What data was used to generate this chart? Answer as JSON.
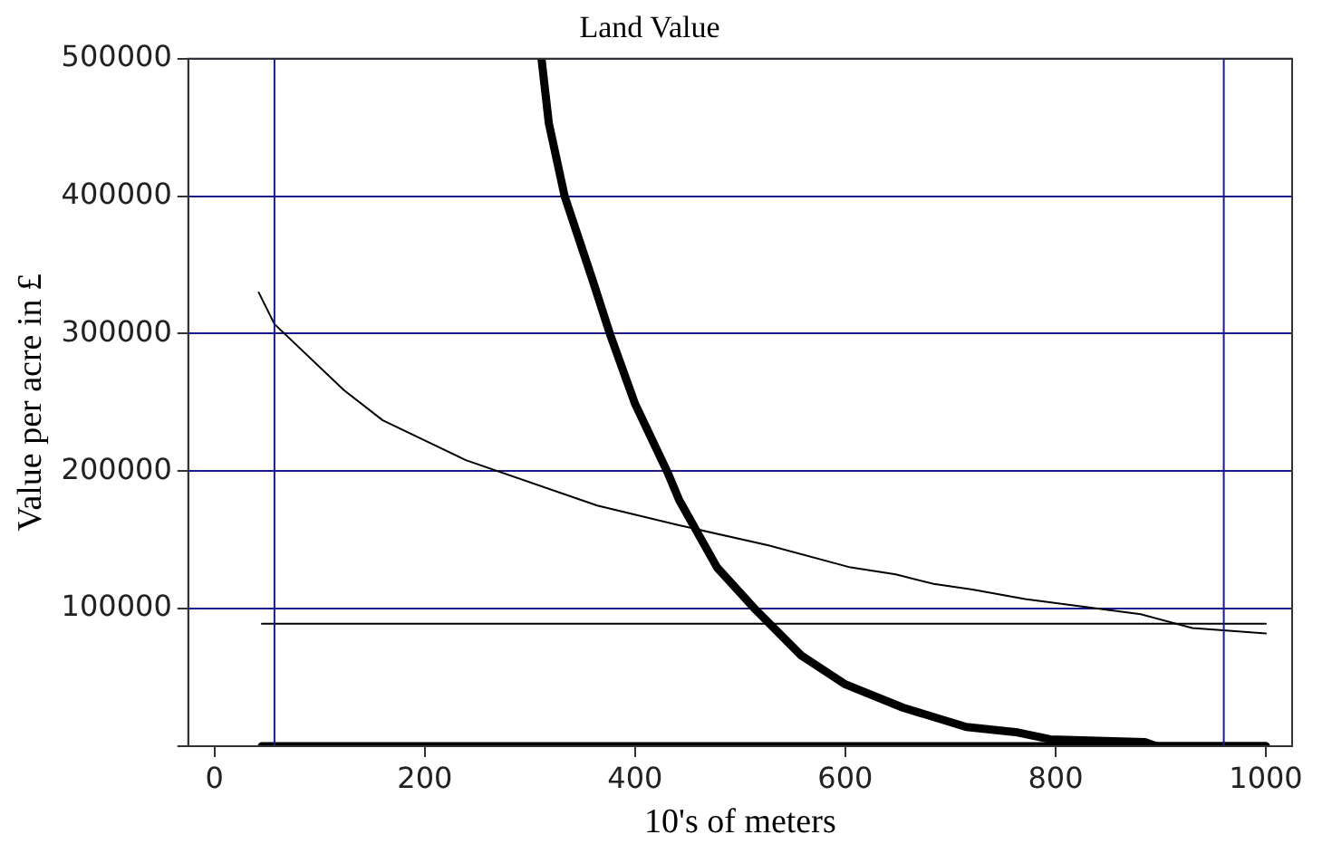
{
  "chart_data": {
    "type": "line",
    "title": "Land Value",
    "xlabel": "10's of meters",
    "ylabel": "Value per acre in £",
    "xlim": [
      -25,
      1025
    ],
    "xticks": [
      0,
      200,
      400,
      600,
      800,
      1000
    ],
    "ylim": [
      0,
      500000
    ],
    "yticks": [
      {
        "value": 0,
        "label": null
      },
      100000,
      200000,
      300000,
      400000,
      500000
    ],
    "grid": "y",
    "legend": false,
    "marker": "none",
    "line_style": "solid",
    "ref_lines": [
      {
        "axis": "x",
        "value": 57,
        "color": "#1a1a8c"
      },
      {
        "axis": "x",
        "value": 960,
        "color": "#1a1a8c"
      }
    ],
    "series": [
      {
        "color": "#000000",
        "x": [
          311,
          318,
          333,
          360,
          376,
          400,
          431,
          442,
          478,
          515,
          558,
          600,
          655,
          715,
          764,
          795,
          885,
          896,
          1000
        ],
        "values": [
          500000,
          453000,
          400000,
          338000,
          300000,
          249000,
          199000,
          179000,
          130000,
          99000,
          66000,
          45000,
          28000,
          14000,
          10000,
          5000,
          3000,
          0,
          0
        ]
      },
      {
        "color": "#000000",
        "x": [
          42,
          57,
          123,
          160,
          239,
          364,
          440,
          527,
          605,
          648,
          684,
          721,
          771,
          881,
          930,
          1000
        ],
        "values": [
          330000,
          307000,
          259000,
          237000,
          208000,
          175000,
          161000,
          146000,
          130000,
          125000,
          118000,
          114000,
          107000,
          96000,
          86000,
          82000
        ]
      },
      {
        "color": "#000000",
        "x": [
          45,
          1000
        ],
        "values": [
          89000,
          89000
        ]
      },
      {
        "color": "#000000",
        "x": [
          45,
          1000
        ],
        "values": [
          0,
          0
        ]
      }
    ]
  }
}
